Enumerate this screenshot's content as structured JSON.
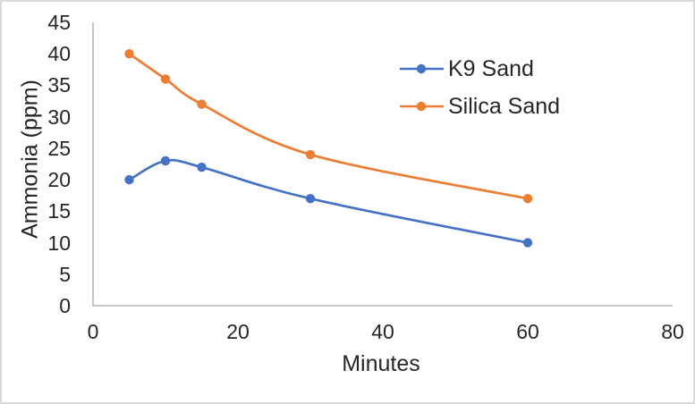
{
  "chart_data": {
    "type": "line",
    "title": "",
    "xlabel": "Minutes",
    "ylabel": "Ammonia (ppm)",
    "x": [
      5,
      10,
      15,
      30,
      60
    ],
    "series": [
      {
        "name": "K9 Sand",
        "color": "#4472C4",
        "values": [
          20,
          23,
          22,
          17,
          10
        ]
      },
      {
        "name": "Silica Sand",
        "color": "#ED7D31",
        "values": [
          40,
          36,
          32,
          24,
          17
        ]
      }
    ],
    "xlim": [
      0,
      80
    ],
    "ylim": [
      0,
      45
    ],
    "xticks": [
      0,
      20,
      40,
      60,
      80
    ],
    "yticks": [
      0,
      5,
      10,
      15,
      20,
      25,
      30,
      35,
      40,
      45
    ],
    "grid": false,
    "smooth_lines": true,
    "marker": "circle",
    "legend_position": "inside-top-right"
  },
  "style": {
    "axis_line_color": "#BFBFBF",
    "text_color": "#262626",
    "frame_border_color": "#D9D9D9",
    "background": "#FFFFFF"
  }
}
